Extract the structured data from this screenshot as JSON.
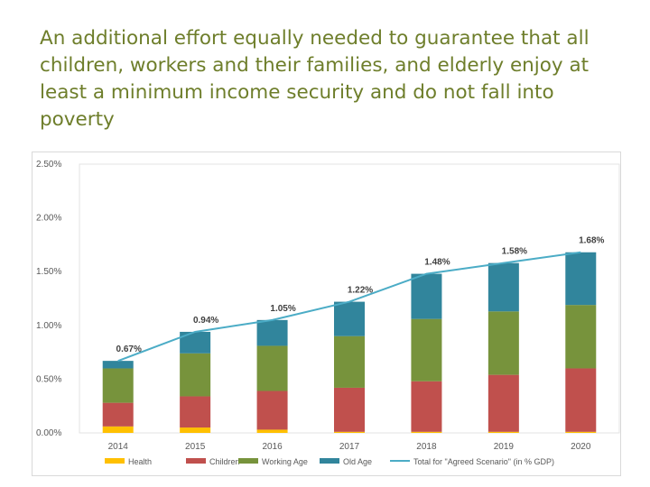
{
  "title": "An additional effort equally needed to guarantee that all children, workers and their families, and elderly enjoy at least a minimum income security and do not fall into poverty",
  "chart_data": {
    "type": "bar",
    "stacked": true,
    "categories": [
      "2014",
      "2015",
      "2016",
      "2017",
      "2018",
      "2019",
      "2020"
    ],
    "ylim": [
      0,
      2.5
    ],
    "yticks": [
      0,
      0.5,
      1.0,
      1.5,
      2.0,
      2.5
    ],
    "ytick_labels": [
      "0.00%",
      "0.50%",
      "1.00%",
      "1.50%",
      "2.00%",
      "2.50%"
    ],
    "grid": false,
    "legend_position": "bottom",
    "series": [
      {
        "name": "Health",
        "color": "#ffc000",
        "values": [
          0.06,
          0.05,
          0.03,
          0.01,
          0.01,
          0.01,
          0.01
        ]
      },
      {
        "name": "Children",
        "color": "#c0504d",
        "values": [
          0.22,
          0.29,
          0.36,
          0.41,
          0.47,
          0.53,
          0.59
        ]
      },
      {
        "name": "Working Age",
        "color": "#77933c",
        "values": [
          0.32,
          0.4,
          0.42,
          0.48,
          0.58,
          0.59,
          0.59
        ]
      },
      {
        "name": "Old Age",
        "color": "#31859c",
        "values": [
          0.07,
          0.2,
          0.24,
          0.32,
          0.42,
          0.45,
          0.49
        ]
      }
    ],
    "total_line": {
      "name": "Total for \"Agreed Scenario\" (in % GDP)",
      "color": "#4bacc6",
      "values": [
        0.67,
        0.94,
        1.05,
        1.22,
        1.48,
        1.58,
        1.68
      ],
      "labels": [
        "0.67%",
        "0.94%",
        "1.05%",
        "1.22%",
        "1.48%",
        "1.58%",
        "1.68%"
      ]
    }
  }
}
